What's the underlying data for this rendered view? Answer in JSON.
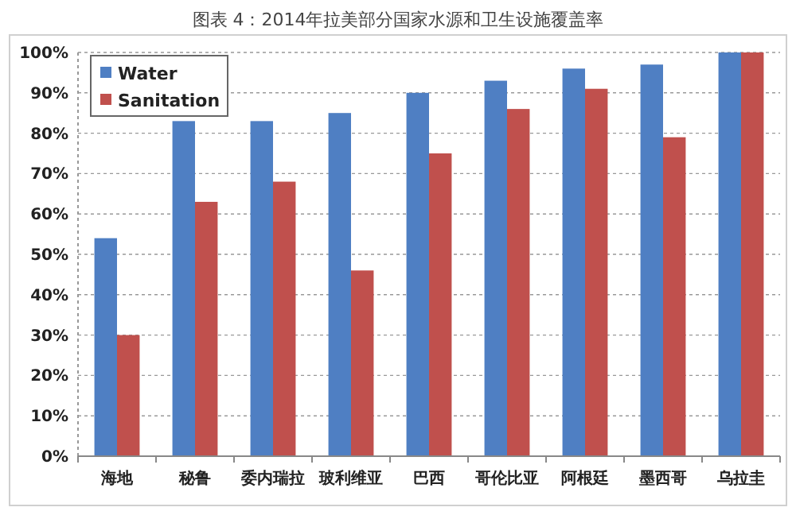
{
  "chart_data": {
    "type": "bar",
    "title": "图表 4：2014年拉美部分国家水源和卫生设施覆盖率",
    "categories": [
      "海地",
      "秘鲁",
      "委内瑞拉",
      "玻利维亚",
      "巴西",
      "哥伦比亚",
      "阿根廷",
      "墨西哥",
      "乌拉圭"
    ],
    "series": [
      {
        "name": "Water",
        "color": "#4f7fc3",
        "values": [
          54,
          83,
          83,
          85,
          90,
          93,
          96,
          97,
          100
        ]
      },
      {
        "name": "Sanitation",
        "color": "#c0504d",
        "values": [
          30,
          63,
          68,
          46,
          75,
          86,
          91,
          79,
          100
        ]
      }
    ],
    "ylim": [
      0,
      100
    ],
    "yticks": [
      {
        "value": 0,
        "label": "0%"
      },
      {
        "value": 10,
        "label": "10%"
      },
      {
        "value": 20,
        "label": "20%"
      },
      {
        "value": 30,
        "label": "30%"
      },
      {
        "value": 40,
        "label": "40%"
      },
      {
        "value": 50,
        "label": "50%"
      },
      {
        "value": 60,
        "label": "60%"
      },
      {
        "value": 70,
        "label": "70%"
      },
      {
        "value": 80,
        "label": "80%"
      },
      {
        "value": 90,
        "label": "90%"
      },
      {
        "value": 100,
        "label": "100%"
      }
    ],
    "grid": "y",
    "legend": "top left"
  }
}
